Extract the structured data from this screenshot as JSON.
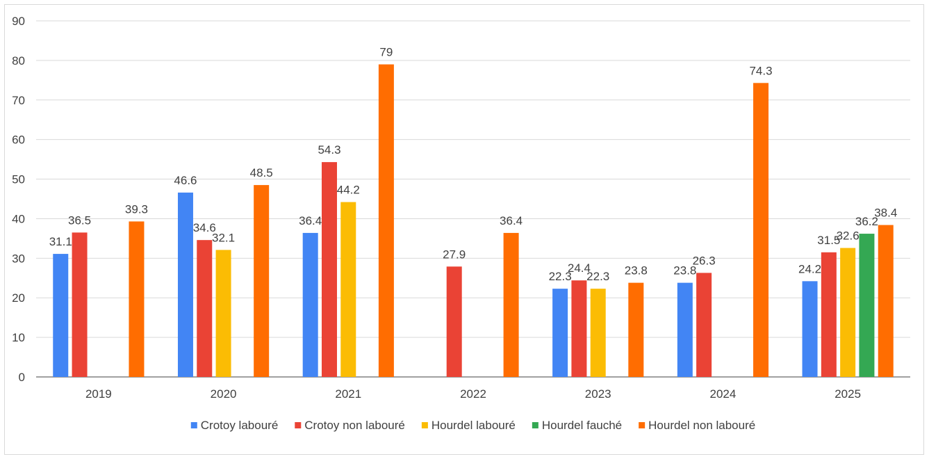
{
  "chart_data": {
    "type": "bar",
    "categories": [
      "2019",
      "2020",
      "2021",
      "2022",
      "2023",
      "2024",
      "2025"
    ],
    "series": [
      {
        "name": "Crotoy labouré",
        "color": "#4285f4",
        "values": [
          31.1,
          46.6,
          36.4,
          null,
          22.3,
          23.8,
          24.2
        ]
      },
      {
        "name": "Crotoy non labouré",
        "color": "#ea4335",
        "values": [
          36.5,
          34.6,
          54.3,
          27.9,
          24.4,
          26.3,
          31.5
        ]
      },
      {
        "name": "Hourdel labouré",
        "color": "#fbbc04",
        "values": [
          null,
          32.1,
          44.2,
          null,
          22.3,
          null,
          32.6
        ]
      },
      {
        "name": "Hourdel fauché",
        "color": "#34a853",
        "values": [
          null,
          null,
          null,
          null,
          null,
          null,
          36.2
        ]
      },
      {
        "name": "Hourdel non labouré",
        "color": "#ff6d01",
        "values": [
          39.3,
          48.5,
          79,
          36.4,
          23.8,
          74.3,
          38.4
        ]
      }
    ],
    "ylim": [
      0,
      90
    ],
    "yticks": [
      0,
      10,
      20,
      30,
      40,
      50,
      60,
      70,
      80,
      90
    ],
    "grid": true,
    "legend_position": "bottom",
    "title": "",
    "xlabel": "",
    "ylabel": ""
  }
}
